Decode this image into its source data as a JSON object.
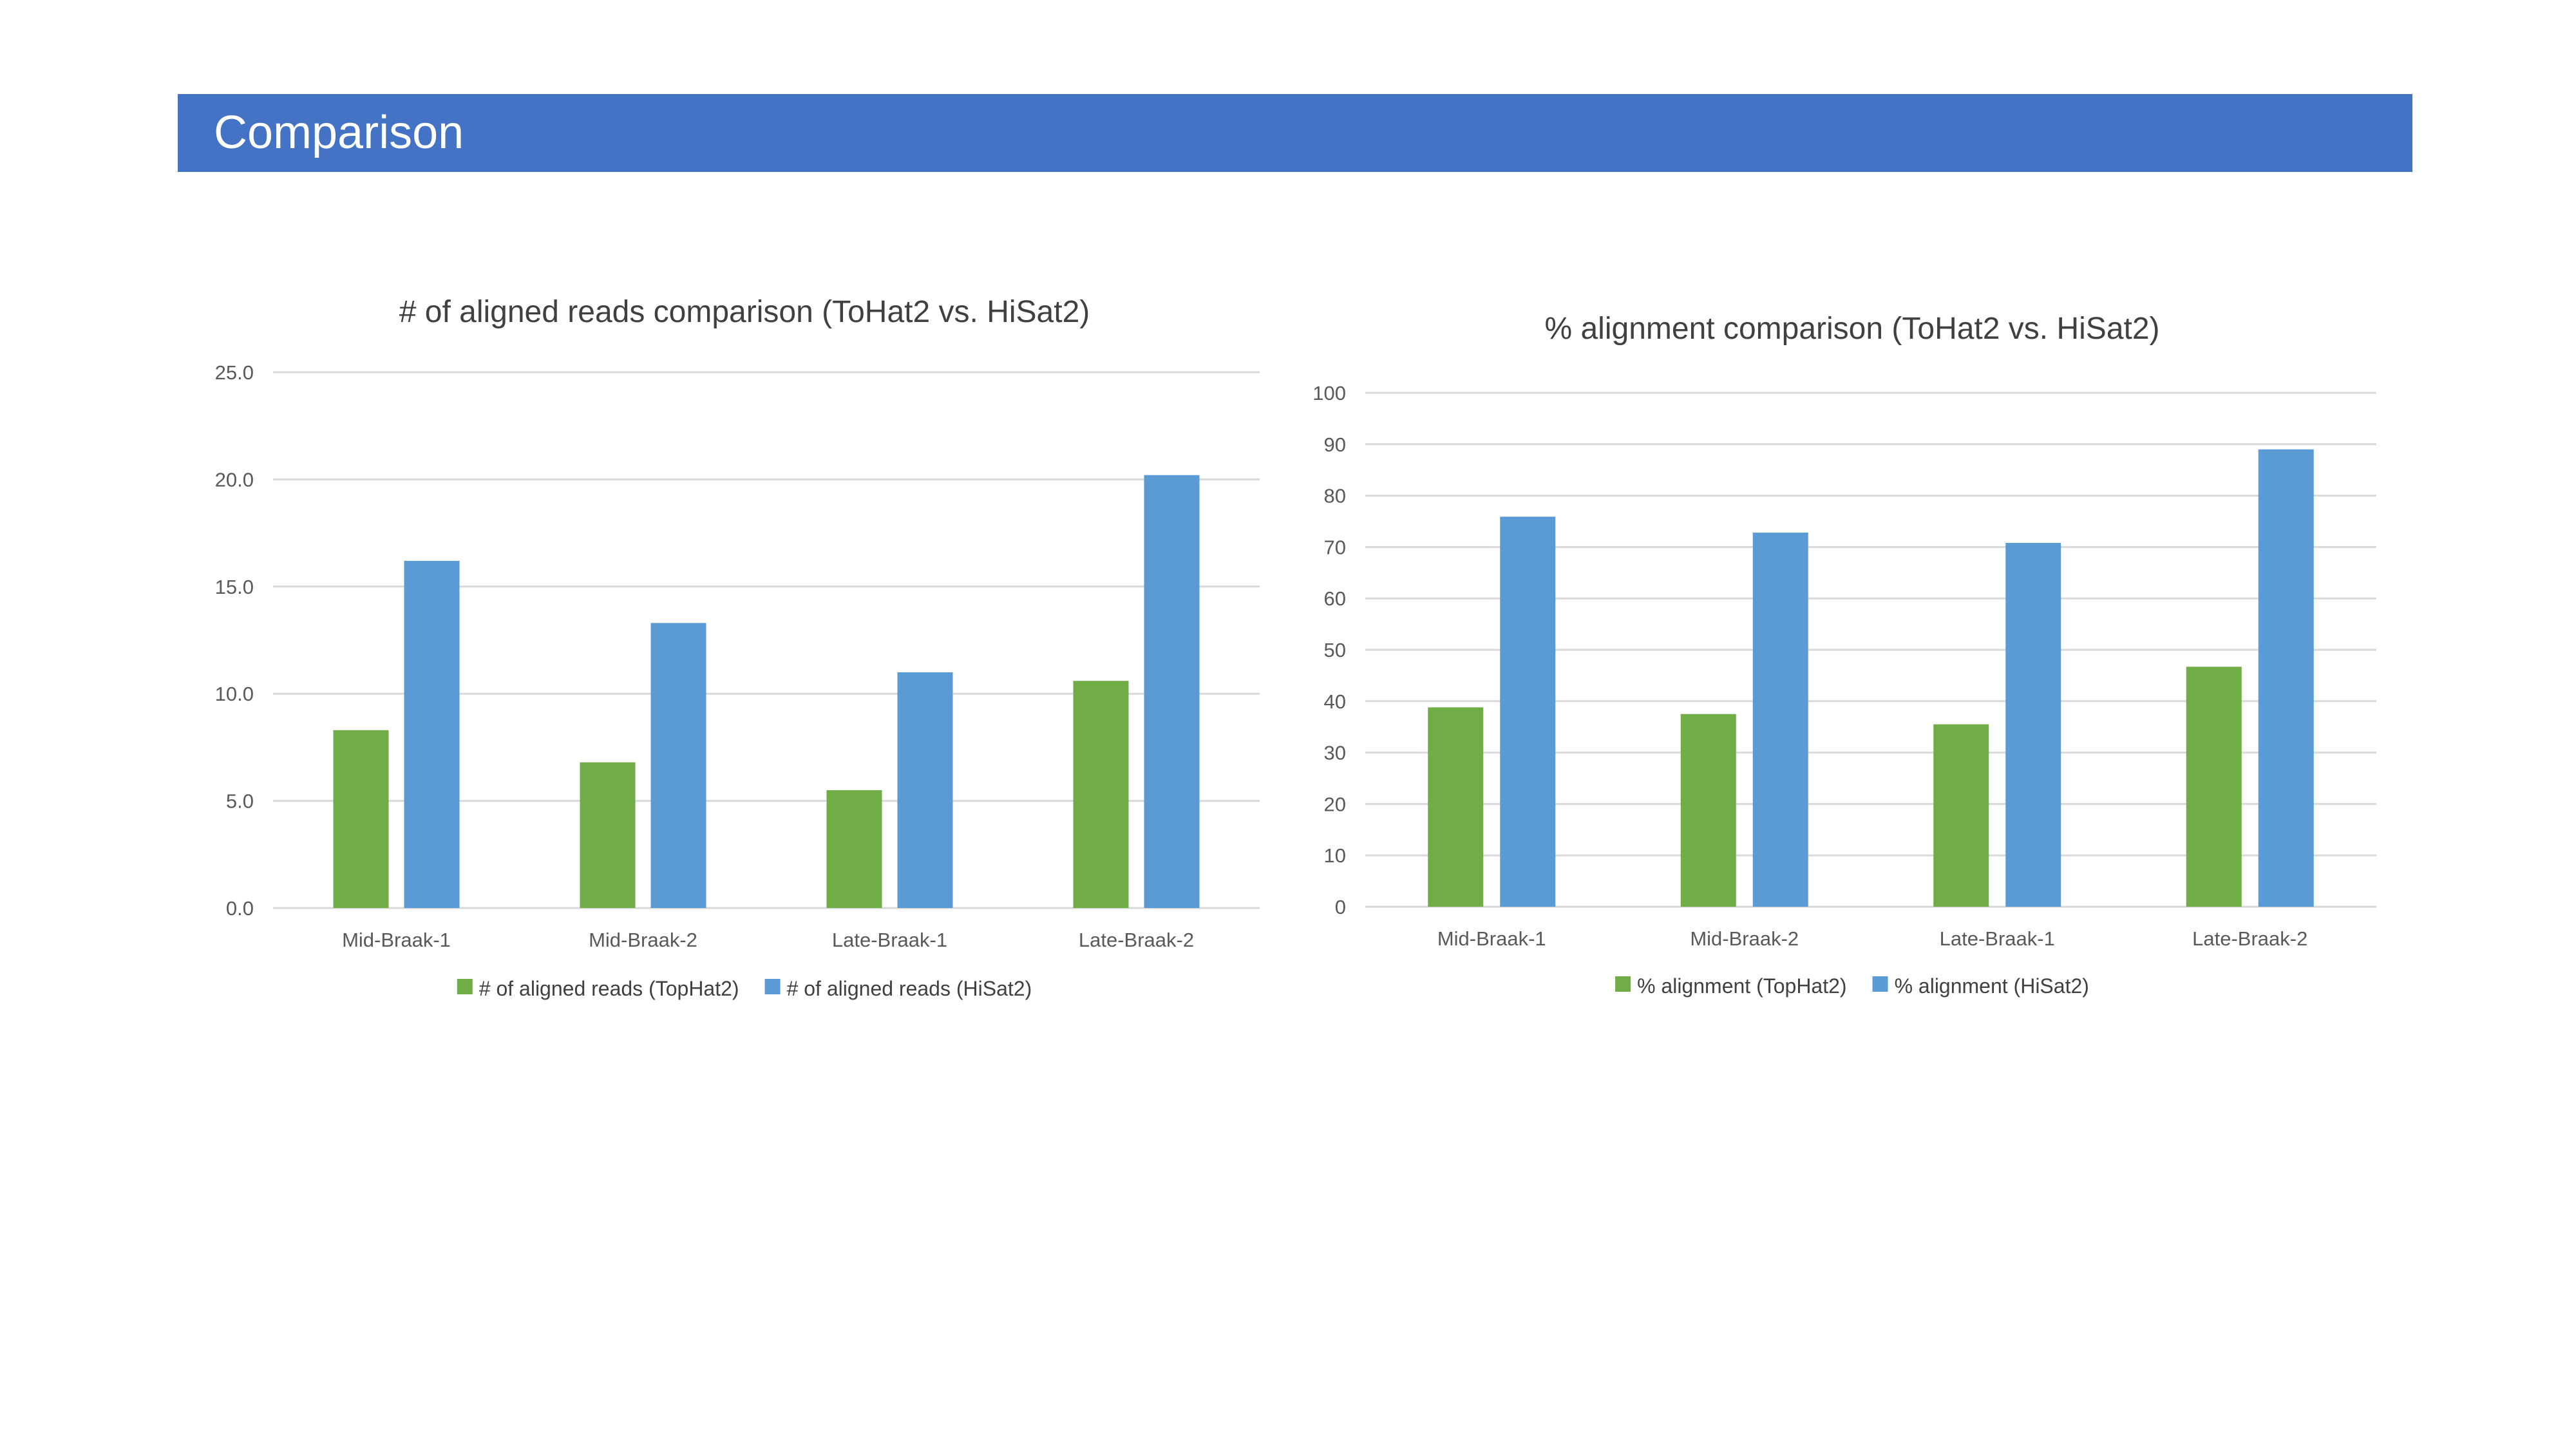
{
  "slide": {
    "title": "Comparison"
  },
  "colors": {
    "header_bg": "#4472c4",
    "tophat2": "#70ad47",
    "hisat2": "#5b9bd5",
    "grid": "#d9d9d9"
  },
  "chart_data": [
    {
      "type": "bar",
      "title": "# of aligned reads comparison (ToHat2 vs. HiSat2)",
      "categories": [
        "Mid-Braak-1",
        "Mid-Braak-2",
        "Late-Braak-1",
        "Late-Braak-2"
      ],
      "series": [
        {
          "name": "# of aligned reads (TopHat2)",
          "values": [
            8.3,
            6.8,
            5.5,
            10.6
          ]
        },
        {
          "name": "# of aligned reads (HiSat2)",
          "values": [
            16.2,
            13.3,
            11.0,
            20.2
          ]
        }
      ],
      "yticks": [
        "0.0",
        "5.0",
        "10.0",
        "15.0",
        "20.0",
        "25.0"
      ],
      "ylim": [
        0,
        25
      ],
      "grid": true,
      "legend_position": "bottom"
    },
    {
      "type": "bar",
      "title": "% alignment comparison (ToHat2 vs. HiSat2)",
      "categories": [
        "Mid-Braak-1",
        "Mid-Braak-2",
        "Late-Braak-1",
        "Late-Braak-2"
      ],
      "series": [
        {
          "name": "% alignment (TopHat2)",
          "values": [
            38.8,
            37.5,
            35.5,
            46.7
          ]
        },
        {
          "name": "% alignment (HiSat2)",
          "values": [
            75.9,
            72.8,
            70.8,
            89.0
          ]
        }
      ],
      "yticks": [
        "0",
        "10",
        "20",
        "30",
        "40",
        "50",
        "60",
        "70",
        "80",
        "90",
        "100"
      ],
      "ylim": [
        0,
        100
      ],
      "grid": true,
      "legend_position": "bottom"
    }
  ]
}
